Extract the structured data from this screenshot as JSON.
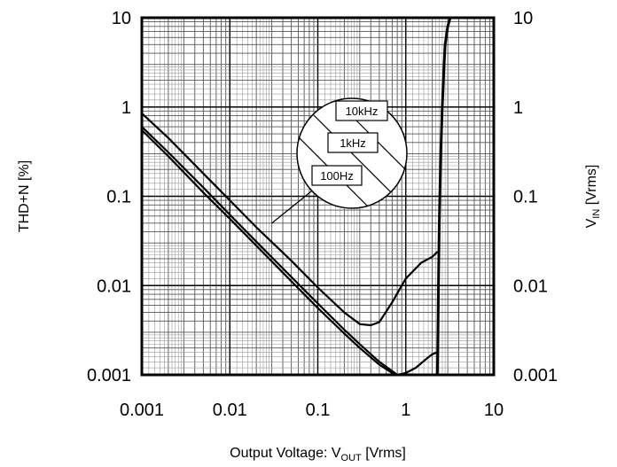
{
  "chart_data": {
    "type": "line",
    "xscale": "log",
    "yscale": "log",
    "xlim": [
      0.001,
      10
    ],
    "ylim": [
      0.001,
      10
    ],
    "y2lim": [
      0.001,
      10
    ],
    "grid": true,
    "xlabel": {
      "main": "Output Voltage: V",
      "sub": "OUT",
      "tail": " [Vrms]"
    },
    "ylabel": "THD+N [%]",
    "y2label": {
      "main": "V",
      "sub": "IN",
      "tail": " [Vrms]"
    },
    "x_ticks": [
      {
        "value": 0.001,
        "label": "0.001"
      },
      {
        "value": 0.01,
        "label": "0.01"
      },
      {
        "value": 0.1,
        "label": "0.1"
      },
      {
        "value": 1,
        "label": "1"
      },
      {
        "value": 10,
        "label": "10"
      }
    ],
    "y_ticks": [
      {
        "value": 0.001,
        "label": "0.001"
      },
      {
        "value": 0.01,
        "label": "0.01"
      },
      {
        "value": 0.1,
        "label": "0.1"
      },
      {
        "value": 1,
        "label": "1"
      },
      {
        "value": 10,
        "label": "10"
      }
    ],
    "y2_ticks": [
      {
        "value": 0.001,
        "label": "0.001"
      },
      {
        "value": 0.01,
        "label": "0.01"
      },
      {
        "value": 0.1,
        "label": "0.1"
      },
      {
        "value": 1,
        "label": "1"
      },
      {
        "value": 10,
        "label": "10"
      }
    ],
    "series": [
      {
        "name": "10kHz",
        "x": [
          0.001,
          0.002,
          0.005,
          0.01,
          0.02,
          0.05,
          0.1,
          0.2,
          0.3,
          0.4,
          0.5,
          0.7,
          1.0,
          1.5,
          2.0,
          2.3
        ],
        "y": [
          0.85,
          0.45,
          0.18,
          0.09,
          0.045,
          0.019,
          0.0095,
          0.005,
          0.0037,
          0.0036,
          0.0039,
          0.0065,
          0.012,
          0.018,
          0.021,
          0.024
        ]
      },
      {
        "name": "1kHz",
        "x": [
          0.001,
          0.002,
          0.005,
          0.01,
          0.02,
          0.05,
          0.1,
          0.2,
          0.3,
          0.5,
          0.7,
          0.8
        ],
        "y": [
          0.6,
          0.31,
          0.125,
          0.062,
          0.031,
          0.0125,
          0.0063,
          0.0032,
          0.0022,
          0.0014,
          0.0011,
          0.001
        ]
      },
      {
        "name": "100Hz",
        "x": [
          0.001,
          0.002,
          0.005,
          0.01,
          0.02,
          0.05,
          0.1,
          0.2,
          0.3,
          0.5,
          0.7,
          0.8,
          1.0,
          1.3,
          1.7,
          2.0,
          2.3
        ],
        "y": [
          0.55,
          0.28,
          0.11,
          0.056,
          0.028,
          0.0112,
          0.0056,
          0.0029,
          0.002,
          0.0013,
          0.00105,
          0.001,
          0.00105,
          0.0012,
          0.0015,
          0.0017,
          0.0018
        ]
      },
      {
        "name": "V_IN",
        "x": [
          2.28,
          2.3,
          2.32,
          2.35,
          2.4,
          2.5,
          2.6,
          2.7,
          2.8,
          3.0,
          3.2
        ],
        "y": [
          0.001,
          0.0018,
          0.003,
          0.01,
          0.05,
          0.3,
          1.0,
          2.5,
          5.0,
          8.0,
          10
        ]
      }
    ],
    "legend_labels": [
      "10kHz",
      "1kHz",
      "100Hz"
    ],
    "legend": {
      "placement": "callout circle",
      "pointer_to": [
        0.03,
        0.05
      ]
    }
  }
}
